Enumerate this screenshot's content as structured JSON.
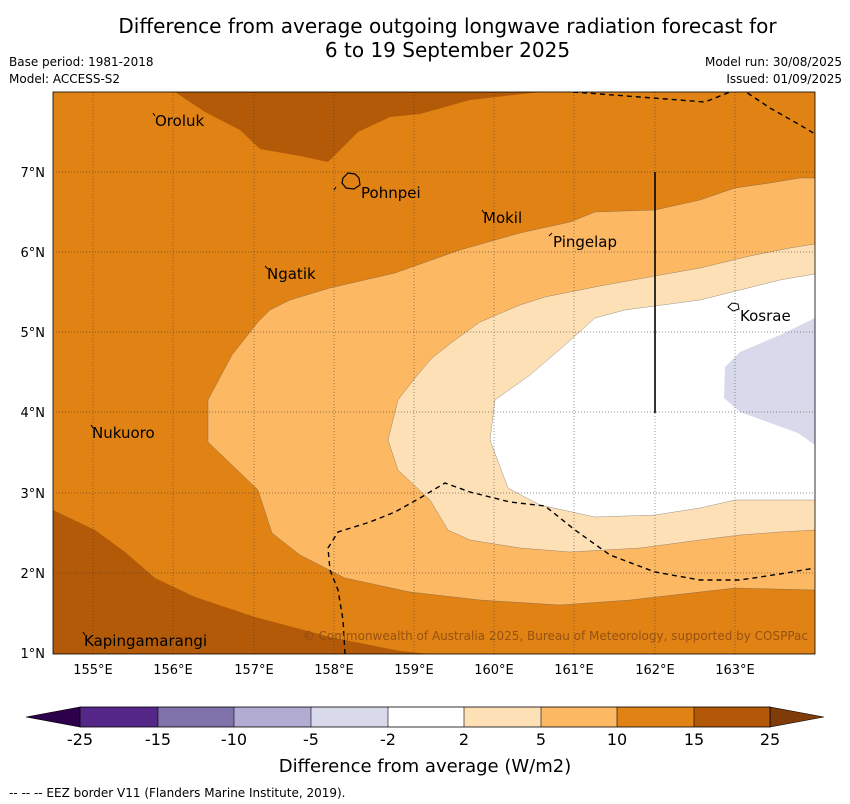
{
  "header": {
    "title_line1": "Difference from average outgoing longwave radiation forecast for",
    "title_line2": "6 to 19 September 2025",
    "base_period": "Base period: 1981-2018",
    "model": "Model: ACCESS-S2",
    "model_run": "Model run: 30/08/2025",
    "issued": "Issued: 01/09/2025"
  },
  "map": {
    "x_ticks": [
      "155°E",
      "156°E",
      "157°E",
      "158°E",
      "159°E",
      "160°E",
      "161°E",
      "162°E",
      "163°E"
    ],
    "y_ticks": [
      "7°N",
      "6°N",
      "5°N",
      "4°N",
      "3°N",
      "2°N",
      "1°N"
    ],
    "places": {
      "oroluk": "Oroluk",
      "pohnpei": "Pohnpei",
      "mokil": "Mokil",
      "pingelap": "Pingelap",
      "ngatik": "Ngatik",
      "kosrae": "Kosrae",
      "nukuoro": "Nukuoro",
      "kapingamarangi": "Kapingamarangi"
    },
    "copyright": "© Commonwealth of Australia 2025, Bureau of Meteorology, supported by COSPPac",
    "colors": {
      "c15_25": "#b25a08",
      "c10_15": "#e08214",
      "c5_10": "#fdb863",
      "c2_5": "#fee0b6",
      "cm2_2": "#ffffff",
      "cm5_m2": "#d8daeb"
    }
  },
  "colorbar": {
    "labels": [
      "-25",
      "-15",
      "-10",
      "-5",
      "-2",
      "2",
      "5",
      "10",
      "15",
      "25"
    ],
    "colors": [
      "#542788",
      "#8073ac",
      "#b2abd2",
      "#d8daeb",
      "#ffffff",
      "#fee0b6",
      "#fdb863",
      "#e08214",
      "#b35806"
    ],
    "under_color": "#2d004b",
    "over_color": "#7f3b08",
    "title": "Difference from average (W/m2)"
  },
  "footnote": "--  --  -- EEZ border V11 (Flanders Marine Institute, 2019)."
}
